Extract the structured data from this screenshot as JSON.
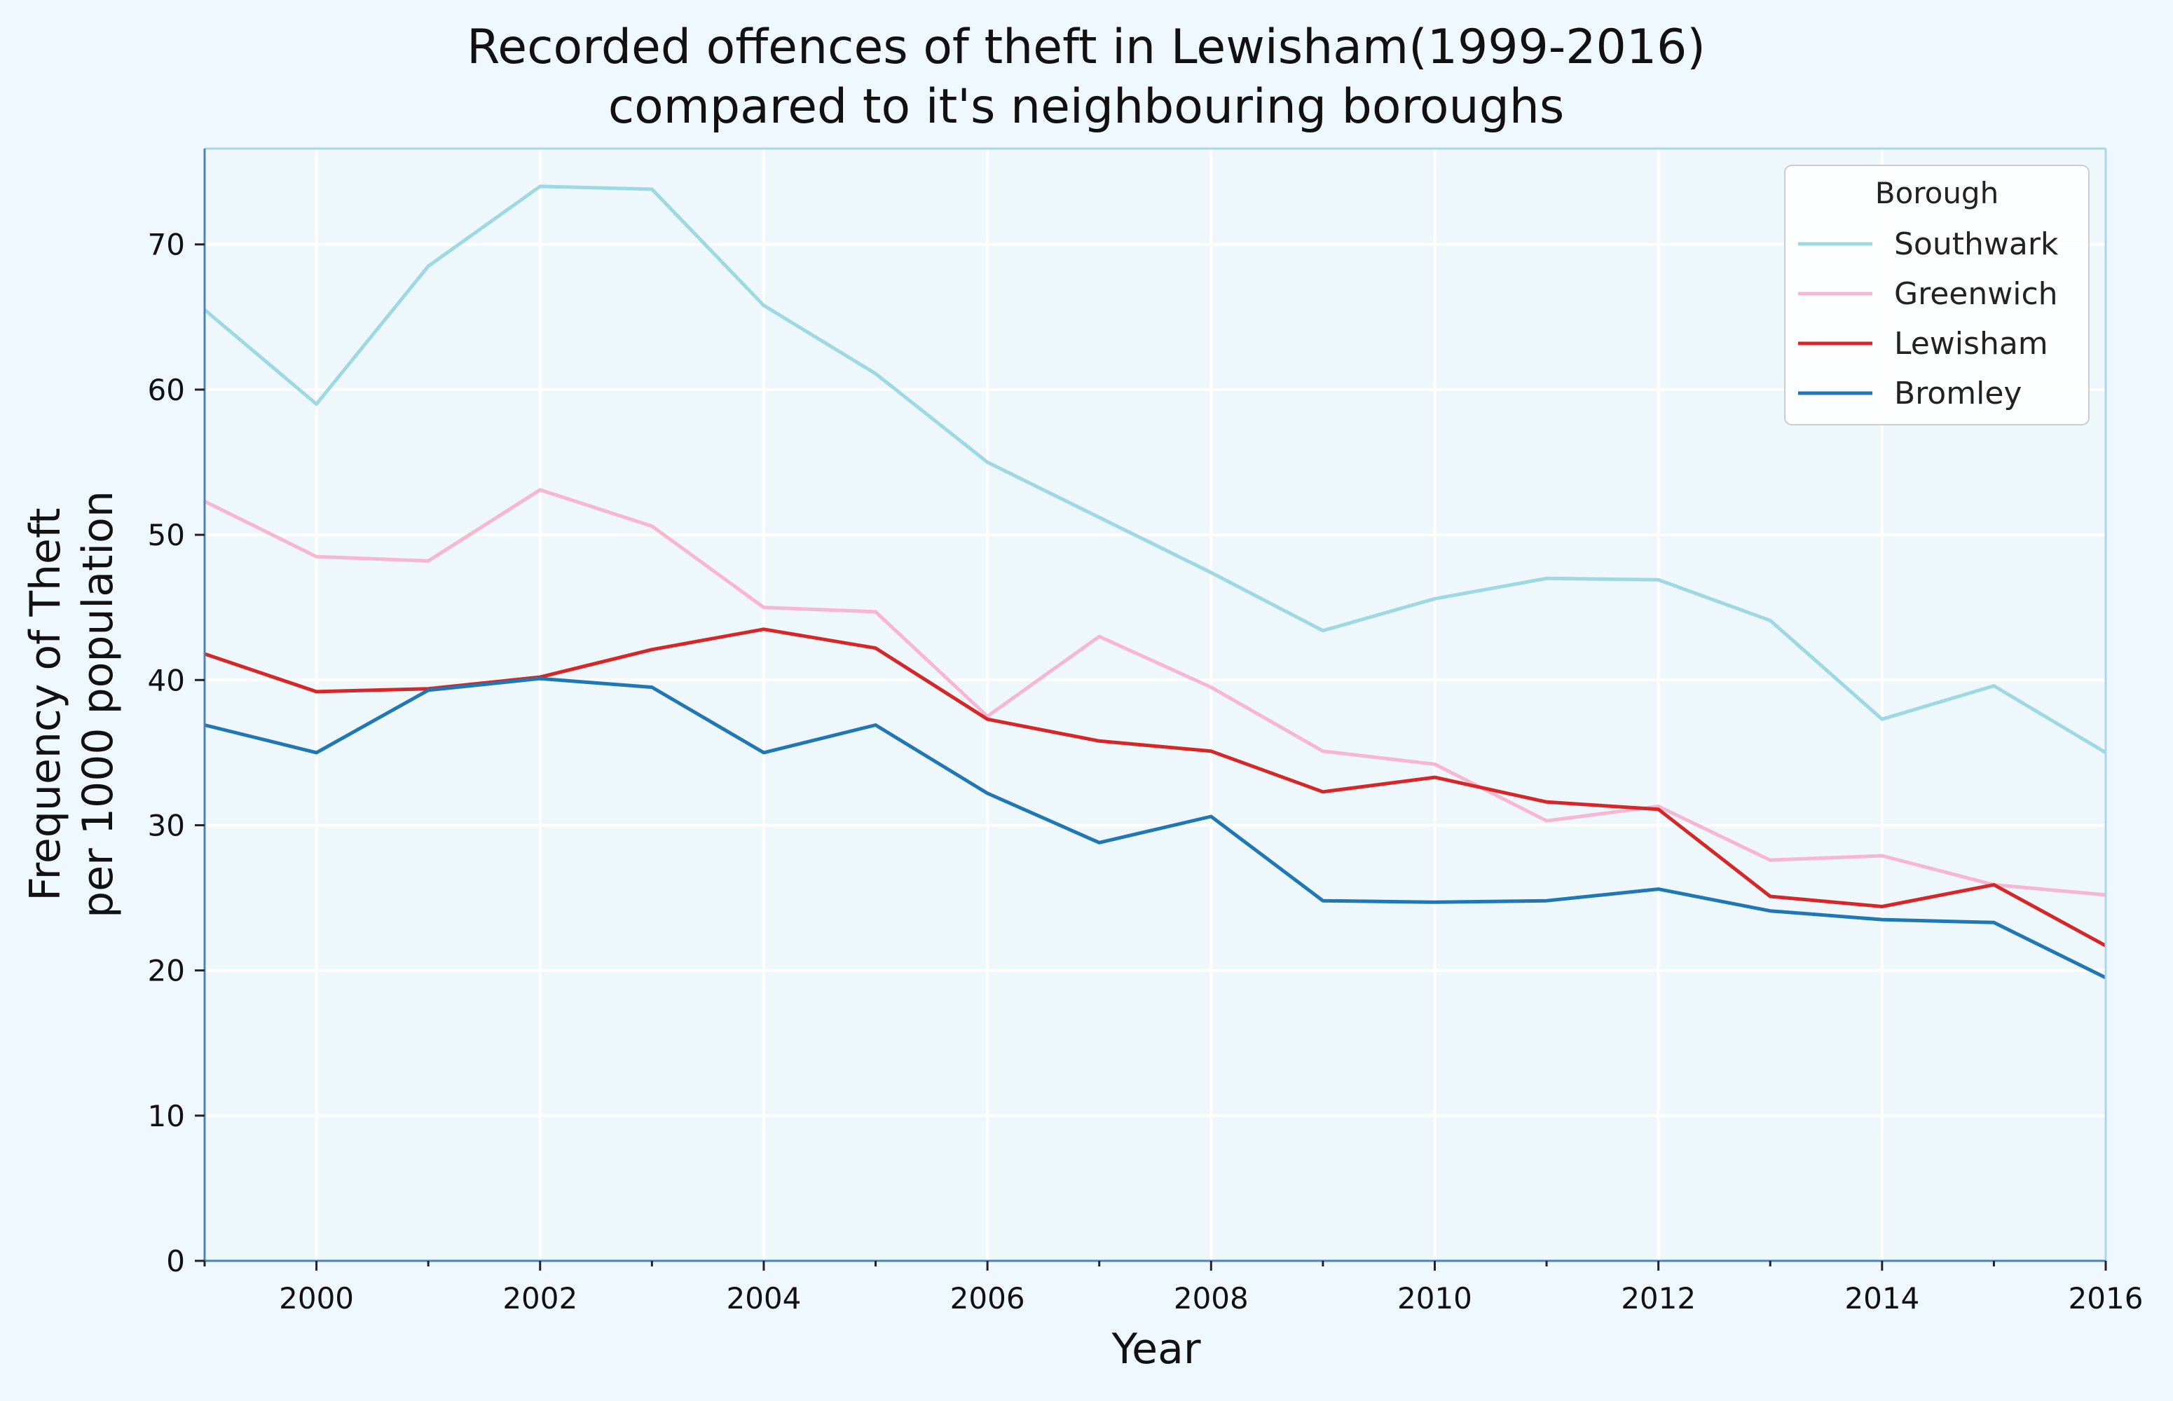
{
  "chart_data": {
    "type": "line",
    "title_line1": "Recorded offences of theft in Lewisham(1999-2016)",
    "title_line2": "compared to it's neighbouring boroughs",
    "xlabel": "Year",
    "ylabel_line1": "Frequency of Theft",
    "ylabel_line2": "per 1000 population",
    "xlim": [
      1999,
      2016
    ],
    "ylim": [
      0,
      76.6
    ],
    "x_ticks": [
      2000,
      2002,
      2004,
      2006,
      2008,
      2010,
      2012,
      2014,
      2016
    ],
    "y_ticks": [
      0,
      10,
      20,
      30,
      40,
      50,
      60,
      70
    ],
    "grid": true,
    "legend_title": "Borough",
    "legend_position": "top-right",
    "x": [
      1999,
      2000,
      2001,
      2002,
      2003,
      2004,
      2005,
      2006,
      2007,
      2008,
      2009,
      2010,
      2011,
      2012,
      2013,
      2014,
      2015,
      2016
    ],
    "series": [
      {
        "name": "Southwark",
        "color": "#9ed9e3",
        "values": [
          65.5,
          59.0,
          68.5,
          74.0,
          73.8,
          65.8,
          61.1,
          55.0,
          51.2,
          47.4,
          43.4,
          45.6,
          47.0,
          46.9,
          44.1,
          37.3,
          39.6,
          35.0
        ]
      },
      {
        "name": "Greenwich",
        "color": "#f7b6d2",
        "values": [
          52.3,
          48.5,
          48.2,
          53.1,
          50.6,
          45.0,
          44.7,
          37.5,
          43.0,
          39.5,
          35.1,
          34.2,
          30.3,
          31.3,
          27.6,
          27.9,
          25.9,
          25.2
        ]
      },
      {
        "name": "Lewisham",
        "color": "#d62728",
        "values": [
          41.8,
          39.2,
          39.4,
          40.2,
          42.1,
          43.5,
          42.2,
          37.3,
          35.8,
          35.1,
          32.3,
          33.3,
          31.6,
          31.1,
          25.1,
          24.4,
          25.9,
          21.7
        ]
      },
      {
        "name": "Bromley",
        "color": "#1f77b4",
        "values": [
          36.9,
          35.0,
          39.3,
          40.1,
          39.5,
          35.0,
          36.9,
          32.2,
          28.8,
          30.6,
          24.8,
          24.7,
          24.8,
          25.6,
          24.1,
          23.5,
          23.3,
          19.5
        ]
      }
    ]
  }
}
